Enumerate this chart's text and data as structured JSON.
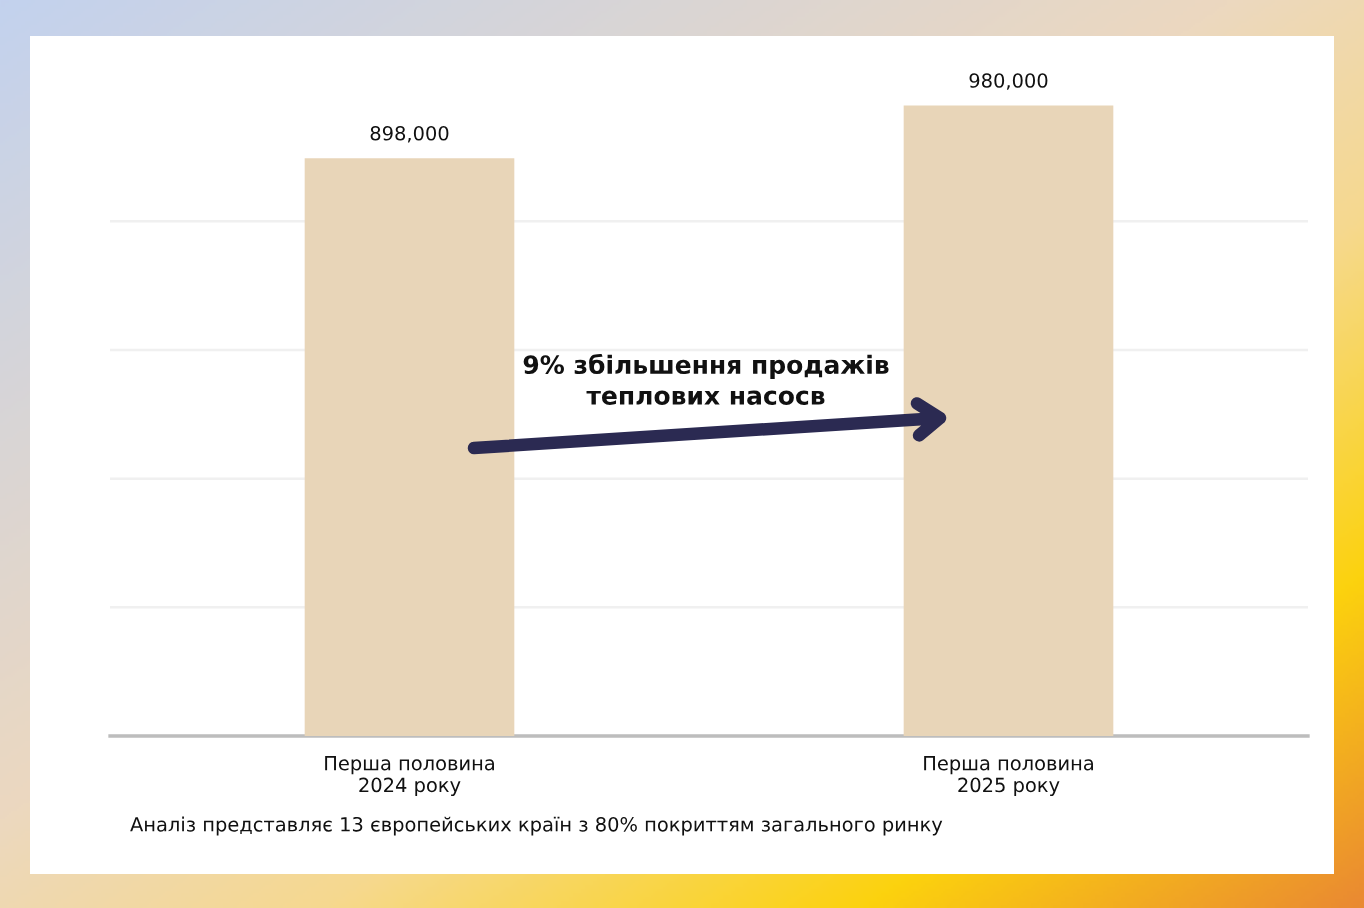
{
  "chart_data": {
    "type": "bar",
    "categories": [
      "Перша половина\n2024 року",
      "Перша половина\n2025 року"
    ],
    "values": [
      898000,
      980000
    ],
    "color": "#e8d5b8",
    "value_labels": [
      "898,000",
      "980,000"
    ],
    "yticks": [
      {
        "value": 0,
        "label": null
      },
      {
        "value": 200000,
        "label": null
      },
      {
        "value": 400000,
        "label": null
      },
      {
        "value": 600000,
        "label": null
      },
      {
        "value": 800000,
        "label": null
      }
    ],
    "grid": "y",
    "tick_labels": "x",
    "annotations": [
      "9% збільшення продажів\nтеплових насосв",
      "Аналіз представляє 13 європейських країн з 80% покриттям загального ринку"
    ]
  }
}
